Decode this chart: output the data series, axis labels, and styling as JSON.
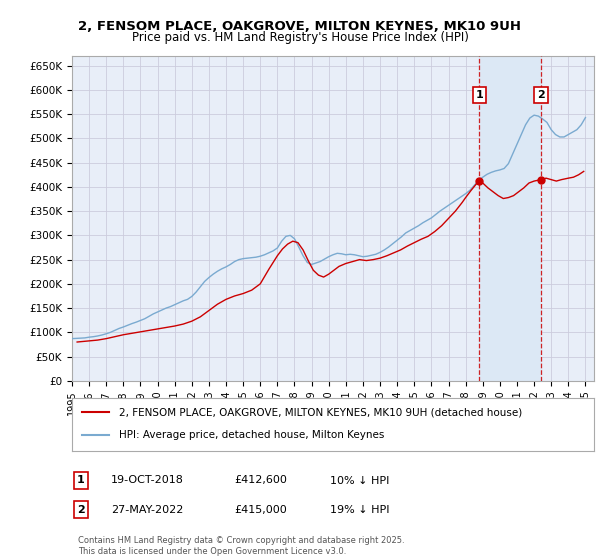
{
  "title": "2, FENSOM PLACE, OAKGROVE, MILTON KEYNES, MK10 9UH",
  "subtitle": "Price paid vs. HM Land Registry's House Price Index (HPI)",
  "ylim": [
    0,
    670000
  ],
  "xlim": [
    1995,
    2025.5
  ],
  "yticks": [
    0,
    50000,
    100000,
    150000,
    200000,
    250000,
    300000,
    350000,
    400000,
    450000,
    500000,
    550000,
    600000,
    650000
  ],
  "ytick_labels": [
    "£0",
    "£50K",
    "£100K",
    "£150K",
    "£200K",
    "£250K",
    "£300K",
    "£350K",
    "£400K",
    "£450K",
    "£500K",
    "£550K",
    "£600K",
    "£650K"
  ],
  "xticks": [
    1995,
    1996,
    1997,
    1998,
    1999,
    2000,
    2001,
    2002,
    2003,
    2004,
    2005,
    2006,
    2007,
    2008,
    2009,
    2010,
    2011,
    2012,
    2013,
    2014,
    2015,
    2016,
    2017,
    2018,
    2019,
    2020,
    2021,
    2022,
    2023,
    2024,
    2025
  ],
  "grid_color": "#ccccdd",
  "background_color": "#e8eef8",
  "shade_color": "#dce8f5",
  "hpi_color": "#7aaad0",
  "price_color": "#cc0000",
  "marker_color": "#cc0000",
  "vline_color": "#cc0000",
  "legend_label_price": "2, FENSOM PLACE, OAKGROVE, MILTON KEYNES, MK10 9UH (detached house)",
  "legend_label_hpi": "HPI: Average price, detached house, Milton Keynes",
  "sale1_x": 2018.8,
  "sale1_y": 412600,
  "sale2_x": 2022.4,
  "sale2_y": 415000,
  "sale1_label": "1",
  "sale2_label": "2",
  "footer": "Contains HM Land Registry data © Crown copyright and database right 2025.\nThis data is licensed under the Open Government Licence v3.0.",
  "ann1_date": "19-OCT-2018",
  "ann1_price": "£412,600",
  "ann1_hpi": "10% ↓ HPI",
  "ann2_date": "27-MAY-2022",
  "ann2_price": "£415,000",
  "ann2_hpi": "19% ↓ HPI",
  "hpi_years": [
    1995.0,
    1995.25,
    1995.5,
    1995.75,
    1996.0,
    1996.25,
    1996.5,
    1996.75,
    1997.0,
    1997.25,
    1997.5,
    1997.75,
    1998.0,
    1998.25,
    1998.5,
    1998.75,
    1999.0,
    1999.25,
    1999.5,
    1999.75,
    2000.0,
    2000.25,
    2000.5,
    2000.75,
    2001.0,
    2001.25,
    2001.5,
    2001.75,
    2002.0,
    2002.25,
    2002.5,
    2002.75,
    2003.0,
    2003.25,
    2003.5,
    2003.75,
    2004.0,
    2004.25,
    2004.5,
    2004.75,
    2005.0,
    2005.25,
    2005.5,
    2005.75,
    2006.0,
    2006.25,
    2006.5,
    2006.75,
    2007.0,
    2007.25,
    2007.5,
    2007.75,
    2008.0,
    2008.25,
    2008.5,
    2008.75,
    2009.0,
    2009.25,
    2009.5,
    2009.75,
    2010.0,
    2010.25,
    2010.5,
    2010.75,
    2011.0,
    2011.25,
    2011.5,
    2011.75,
    2012.0,
    2012.25,
    2012.5,
    2012.75,
    2013.0,
    2013.25,
    2013.5,
    2013.75,
    2014.0,
    2014.25,
    2014.5,
    2014.75,
    2015.0,
    2015.25,
    2015.5,
    2015.75,
    2016.0,
    2016.25,
    2016.5,
    2016.75,
    2017.0,
    2017.25,
    2017.5,
    2017.75,
    2018.0,
    2018.25,
    2018.5,
    2018.75,
    2019.0,
    2019.25,
    2019.5,
    2019.75,
    2020.0,
    2020.25,
    2020.5,
    2020.75,
    2021.0,
    2021.25,
    2021.5,
    2021.75,
    2022.0,
    2022.25,
    2022.5,
    2022.75,
    2023.0,
    2023.25,
    2023.5,
    2023.75,
    2024.0,
    2024.25,
    2024.5,
    2024.75,
    2025.0
  ],
  "hpi_values": [
    87000,
    87500,
    88000,
    88500,
    90000,
    91000,
    92500,
    94500,
    97000,
    100000,
    104000,
    108000,
    111000,
    114500,
    118000,
    121000,
    124500,
    128000,
    133000,
    138000,
    142000,
    146000,
    150000,
    153000,
    157000,
    161000,
    165000,
    168000,
    174000,
    183000,
    194000,
    205000,
    213000,
    220000,
    226000,
    231000,
    235000,
    240000,
    246000,
    250000,
    252000,
    253000,
    254000,
    255000,
    257000,
    260000,
    264000,
    268000,
    274000,
    288000,
    298000,
    300000,
    293000,
    276000,
    258000,
    244000,
    240000,
    243000,
    246000,
    251000,
    256000,
    260000,
    263000,
    262000,
    260000,
    261000,
    260000,
    258000,
    256000,
    257000,
    259000,
    261000,
    265000,
    270000,
    276000,
    283000,
    290000,
    297000,
    305000,
    310000,
    315000,
    320000,
    326000,
    331000,
    336000,
    343000,
    350000,
    356000,
    362000,
    368000,
    374000,
    380000,
    386000,
    393000,
    403000,
    413000,
    420000,
    426000,
    430000,
    433000,
    435000,
    438000,
    448000,
    468000,
    488000,
    508000,
    528000,
    542000,
    548000,
    546000,
    540000,
    533000,
    518000,
    508000,
    503000,
    503000,
    508000,
    513000,
    518000,
    528000,
    543000
  ],
  "pp_years": [
    1995.3,
    1995.9,
    1996.5,
    1997.0,
    1997.5,
    1998.0,
    1998.5,
    1999.0,
    1999.5,
    2000.0,
    2000.5,
    2001.0,
    2001.5,
    2002.0,
    2002.5,
    2003.0,
    2003.5,
    2004.0,
    2004.5,
    2005.0,
    2005.5,
    2006.0,
    2006.5,
    2007.0,
    2007.3,
    2007.6,
    2007.9,
    2008.2,
    2008.5,
    2008.8,
    2009.1,
    2009.4,
    2009.7,
    2010.0,
    2010.3,
    2010.6,
    2011.0,
    2011.4,
    2011.8,
    2012.2,
    2012.6,
    2013.0,
    2013.4,
    2013.8,
    2014.2,
    2014.6,
    2015.0,
    2015.4,
    2015.8,
    2016.2,
    2016.6,
    2017.0,
    2017.4,
    2017.8,
    2018.0,
    2018.3,
    2018.6,
    2018.8,
    2019.0,
    2019.3,
    2019.6,
    2019.9,
    2020.2,
    2020.5,
    2020.8,
    2021.1,
    2021.4,
    2021.7,
    2022.0,
    2022.4,
    2022.7,
    2023.0,
    2023.3,
    2023.6,
    2024.0,
    2024.3,
    2024.6,
    2024.9
  ],
  "pp_values": [
    80000,
    82000,
    84000,
    87000,
    91000,
    95000,
    98000,
    101000,
    104000,
    107000,
    110000,
    113000,
    117000,
    123000,
    132000,
    145000,
    158000,
    168000,
    175000,
    180000,
    187000,
    200000,
    230000,
    258000,
    272000,
    282000,
    288000,
    285000,
    270000,
    248000,
    228000,
    218000,
    214000,
    220000,
    228000,
    236000,
    242000,
    246000,
    250000,
    248000,
    250000,
    253000,
    258000,
    264000,
    270000,
    278000,
    285000,
    292000,
    298000,
    308000,
    320000,
    335000,
    350000,
    368000,
    378000,
    392000,
    405000,
    412600,
    408000,
    398000,
    390000,
    382000,
    376000,
    378000,
    382000,
    390000,
    398000,
    408000,
    412000,
    415000,
    418000,
    415000,
    412000,
    415000,
    418000,
    420000,
    425000,
    432000
  ]
}
